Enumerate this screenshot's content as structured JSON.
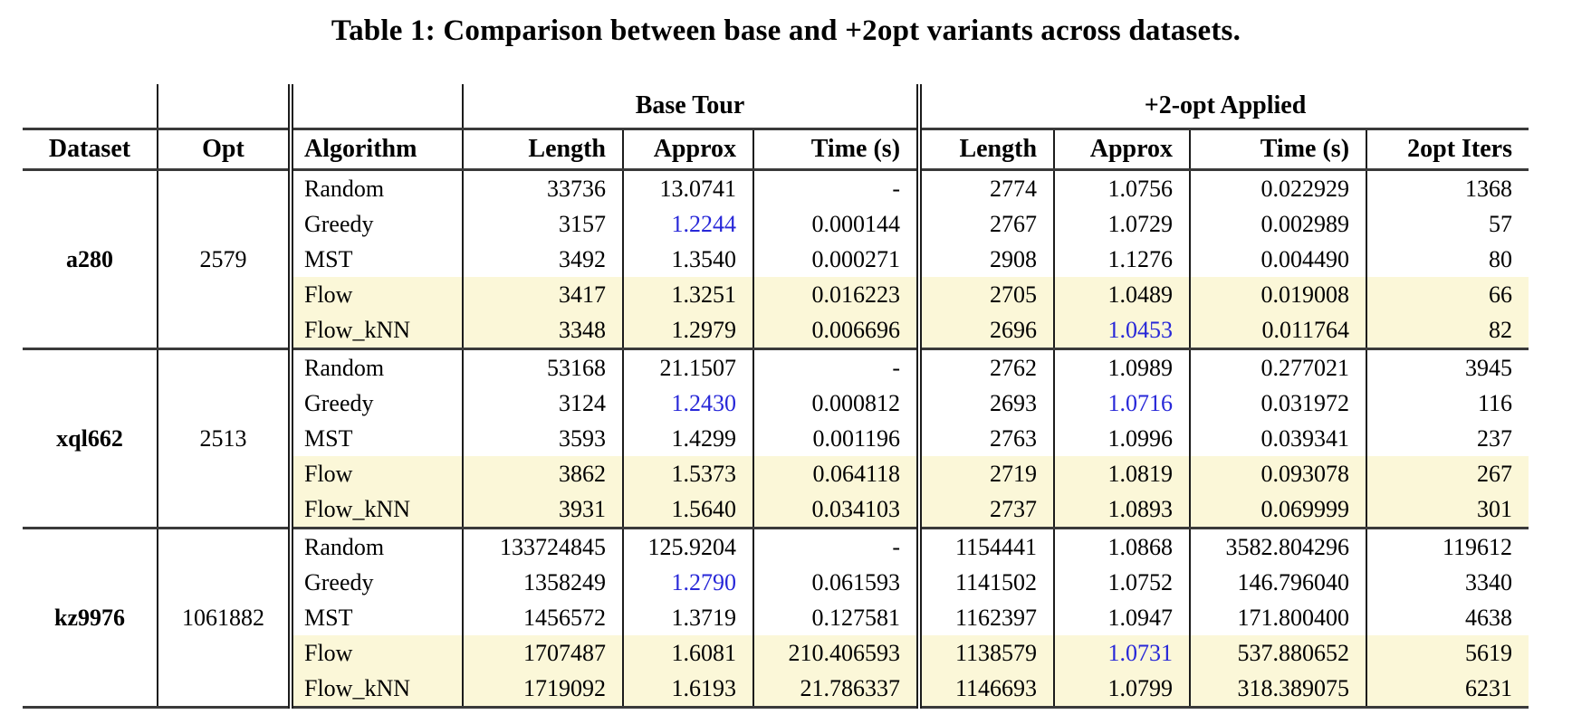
{
  "caption": "Table 1: Comparison between base and +2opt variants across datasets.",
  "colors": {
    "row_highlight": "#fbf7d8",
    "best_value": "#2727d8",
    "rule": "#3a3a3a",
    "grid_line": "#1c1c1c"
  },
  "table": {
    "group_headers": [
      {
        "label": "Base Tour"
      },
      {
        "label": "+2-opt Applied"
      }
    ],
    "column_headers": [
      "Dataset",
      "Opt",
      "Algorithm",
      "Length",
      "Approx",
      "Time (s)",
      "Length",
      "Approx",
      "Time (s)",
      "2opt Iters"
    ],
    "groups": [
      {
        "dataset": "a280",
        "opt": "2579",
        "rows": [
          {
            "algorithm": "Random",
            "values": [
              "33736",
              "13.0741",
              "-",
              "2774",
              "1.0756",
              "0.022929",
              "1368"
            ],
            "best": [],
            "highlight": false
          },
          {
            "algorithm": "Greedy",
            "values": [
              "3157",
              "1.2244",
              "0.000144",
              "2767",
              "1.0729",
              "0.002989",
              "57"
            ],
            "best": [
              1
            ],
            "highlight": false
          },
          {
            "algorithm": "MST",
            "values": [
              "3492",
              "1.3540",
              "0.000271",
              "2908",
              "1.1276",
              "0.004490",
              "80"
            ],
            "best": [],
            "highlight": false
          },
          {
            "algorithm": "Flow",
            "values": [
              "3417",
              "1.3251",
              "0.016223",
              "2705",
              "1.0489",
              "0.019008",
              "66"
            ],
            "best": [],
            "highlight": true
          },
          {
            "algorithm": "Flow_kNN",
            "values": [
              "3348",
              "1.2979",
              "0.006696",
              "2696",
              "1.0453",
              "0.011764",
              "82"
            ],
            "best": [
              4
            ],
            "highlight": true
          }
        ]
      },
      {
        "dataset": "xql662",
        "opt": "2513",
        "rows": [
          {
            "algorithm": "Random",
            "values": [
              "53168",
              "21.1507",
              "-",
              "2762",
              "1.0989",
              "0.277021",
              "3945"
            ],
            "best": [],
            "highlight": false
          },
          {
            "algorithm": "Greedy",
            "values": [
              "3124",
              "1.2430",
              "0.000812",
              "2693",
              "1.0716",
              "0.031972",
              "116"
            ],
            "best": [
              1,
              4
            ],
            "highlight": false
          },
          {
            "algorithm": "MST",
            "values": [
              "3593",
              "1.4299",
              "0.001196",
              "2763",
              "1.0996",
              "0.039341",
              "237"
            ],
            "best": [],
            "highlight": false
          },
          {
            "algorithm": "Flow",
            "values": [
              "3862",
              "1.5373",
              "0.064118",
              "2719",
              "1.0819",
              "0.093078",
              "267"
            ],
            "best": [],
            "highlight": true
          },
          {
            "algorithm": "Flow_kNN",
            "values": [
              "3931",
              "1.5640",
              "0.034103",
              "2737",
              "1.0893",
              "0.069999",
              "301"
            ],
            "best": [],
            "highlight": true
          }
        ]
      },
      {
        "dataset": "kz9976",
        "opt": "1061882",
        "rows": [
          {
            "algorithm": "Random",
            "values": [
              "133724845",
              "125.9204",
              "-",
              "1154441",
              "1.0868",
              "3582.804296",
              "119612"
            ],
            "best": [],
            "highlight": false
          },
          {
            "algorithm": "Greedy",
            "values": [
              "1358249",
              "1.2790",
              "0.061593",
              "1141502",
              "1.0752",
              "146.796040",
              "3340"
            ],
            "best": [
              1
            ],
            "highlight": false
          },
          {
            "algorithm": "MST",
            "values": [
              "1456572",
              "1.3719",
              "0.127581",
              "1162397",
              "1.0947",
              "171.800400",
              "4638"
            ],
            "best": [],
            "highlight": false
          },
          {
            "algorithm": "Flow",
            "values": [
              "1707487",
              "1.6081",
              "210.406593",
              "1138579",
              "1.0731",
              "537.880652",
              "5619"
            ],
            "best": [
              4
            ],
            "highlight": true
          },
          {
            "algorithm": "Flow_kNN",
            "values": [
              "1719092",
              "1.6193",
              "21.786337",
              "1146693",
              "1.0799",
              "318.389075",
              "6231"
            ],
            "best": [],
            "highlight": true
          }
        ]
      }
    ]
  }
}
